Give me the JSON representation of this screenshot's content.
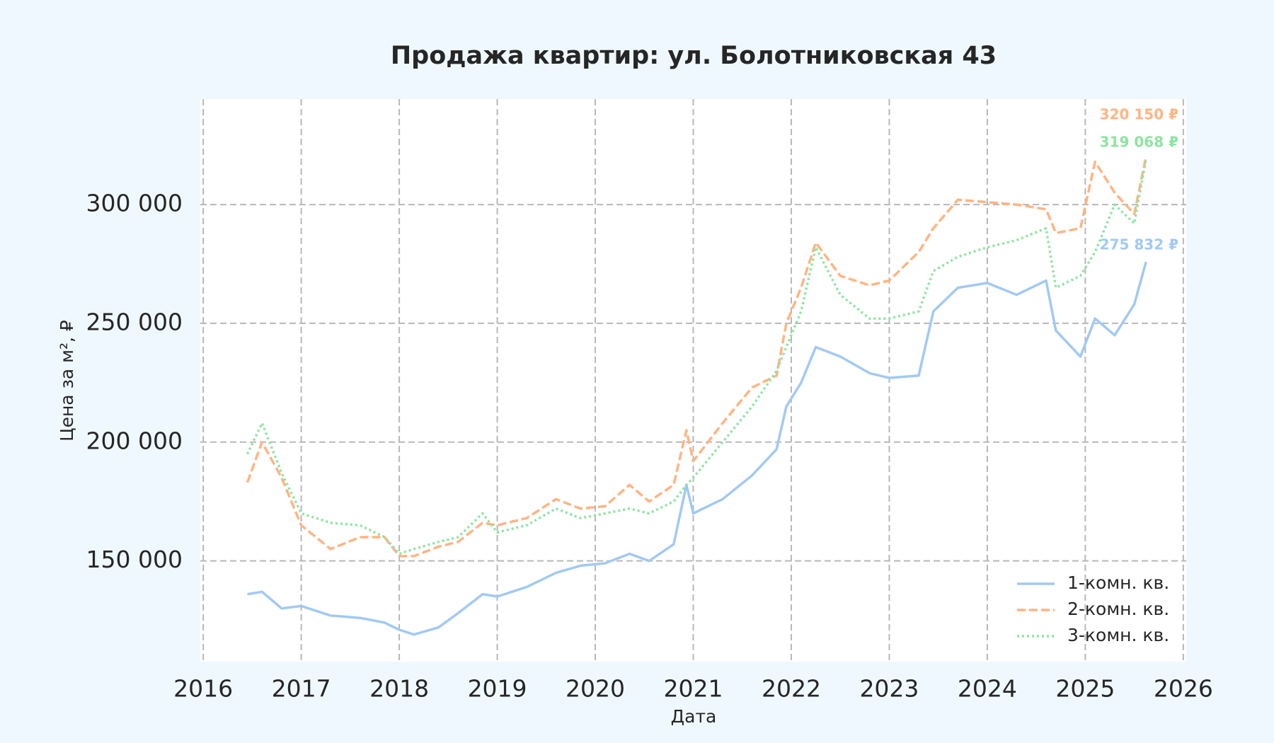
{
  "chart_data": {
    "type": "line",
    "title": "Продажа квартир: ул. Болотниковская 43",
    "x_label": "Дата",
    "y_label": "Цена за м², ₽",
    "x": [
      2016.45,
      2016.6,
      2016.8,
      2017.0,
      2017.3,
      2017.6,
      2017.85,
      2018.0,
      2018.15,
      2018.4,
      2018.6,
      2018.85,
      2019.0,
      2019.3,
      2019.6,
      2019.85,
      2020.1,
      2020.35,
      2020.55,
      2020.8,
      2020.93,
      2021.0,
      2021.3,
      2021.6,
      2021.85,
      2021.95,
      2022.1,
      2022.25,
      2022.5,
      2022.8,
      2023.0,
      2023.3,
      2023.45,
      2023.7,
      2024.0,
      2024.3,
      2024.6,
      2024.7,
      2024.95,
      2025.1,
      2025.3,
      2025.5,
      2025.62
    ],
    "series": [
      {
        "name": "1-комн. кв.",
        "color": "#a1c9f4",
        "dash": "solid",
        "values": [
          136000,
          137000,
          130000,
          131000,
          127000,
          126000,
          124000,
          121000,
          119000,
          122000,
          128000,
          136000,
          135000,
          139000,
          145000,
          148000,
          149000,
          153000,
          150000,
          157000,
          182000,
          170000,
          176000,
          186000,
          197000,
          215000,
          225000,
          240000,
          236000,
          229000,
          227000,
          228000,
          255000,
          265000,
          267000,
          262000,
          268000,
          247000,
          236000,
          252000,
          245000,
          258000,
          275832
        ],
        "value_labels": [
          null,
          null,
          null,
          null,
          null,
          null,
          null,
          null,
          null,
          null,
          null,
          null,
          null,
          null,
          null,
          null,
          null,
          null,
          null,
          null,
          null,
          null,
          null,
          null,
          null,
          null,
          null,
          null,
          null,
          null,
          null,
          null,
          null,
          null,
          null,
          null,
          null,
          null,
          null,
          null,
          null,
          null,
          "275 832 ₽"
        ]
      },
      {
        "name": "2-комн. кв.",
        "color": "#ffb482",
        "dash": "dashed",
        "values": [
          183000,
          200000,
          185000,
          165000,
          155000,
          160000,
          160000,
          152000,
          152000,
          156000,
          158000,
          166000,
          165000,
          168000,
          176000,
          172000,
          173000,
          182000,
          175000,
          182000,
          205000,
          192000,
          208000,
          223000,
          228000,
          250000,
          265000,
          284000,
          270000,
          266000,
          268000,
          280000,
          290000,
          302000,
          301000,
          300000,
          298000,
          288000,
          290000,
          318000,
          305000,
          296000,
          320150
        ],
        "value_labels": [
          null,
          null,
          null,
          null,
          null,
          null,
          null,
          null,
          null,
          null,
          null,
          null,
          null,
          null,
          null,
          null,
          null,
          null,
          null,
          null,
          null,
          null,
          null,
          null,
          null,
          null,
          null,
          null,
          null,
          null,
          null,
          null,
          null,
          null,
          null,
          null,
          null,
          null,
          null,
          null,
          null,
          null,
          "320 150 ₽"
        ]
      },
      {
        "name": "3-комн. кв.",
        "color": "#8de5a1",
        "dash": "dotted",
        "values": [
          195000,
          208000,
          187000,
          170000,
          166000,
          165000,
          160000,
          153000,
          155000,
          158000,
          160000,
          170000,
          162000,
          165000,
          172000,
          168000,
          170000,
          172000,
          170000,
          175000,
          182000,
          185000,
          200000,
          215000,
          230000,
          240000,
          255000,
          282000,
          262000,
          252000,
          252000,
          255000,
          272000,
          278000,
          282000,
          285000,
          290000,
          265000,
          270000,
          280000,
          300000,
          292000,
          319068
        ],
        "value_labels": [
          null,
          null,
          null,
          null,
          null,
          null,
          null,
          null,
          null,
          null,
          null,
          null,
          null,
          null,
          null,
          null,
          null,
          null,
          null,
          null,
          null,
          null,
          null,
          null,
          null,
          null,
          null,
          null,
          null,
          null,
          null,
          null,
          null,
          null,
          null,
          null,
          null,
          null,
          null,
          null,
          null,
          null,
          "319 068 ₽"
        ]
      }
    ],
    "xlim": [
      2015.97,
      2026.03
    ],
    "xticks": [
      2016,
      2017,
      2018,
      2019,
      2020,
      2021,
      2022,
      2023,
      2024,
      2025,
      2026
    ],
    "ylim": [
      107600,
      344400
    ],
    "yticks": [
      {
        "value": 150000,
        "label": "150 000"
      },
      {
        "value": 200000,
        "label": "200 000"
      },
      {
        "value": 250000,
        "label": "250 000"
      },
      {
        "value": 300000,
        "label": "300 000"
      }
    ],
    "grid": true,
    "legend": "lower right"
  }
}
